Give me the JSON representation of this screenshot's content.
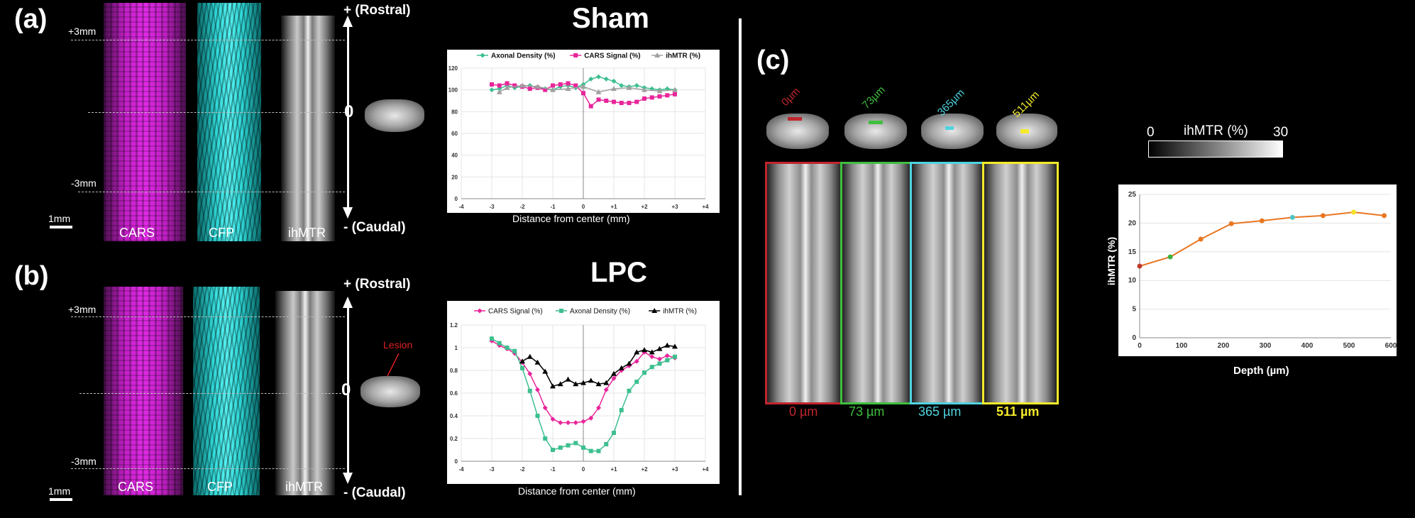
{
  "panels": {
    "a": {
      "label": "(a)",
      "title": "Sham"
    },
    "b": {
      "label": "(b)",
      "title": "LPC"
    },
    "c": {
      "label": "(c)"
    }
  },
  "strip_labels": {
    "cars": "CARS",
    "cfp": "CFP",
    "ihmtr": "ihMTR"
  },
  "markers": {
    "plus3": "+3mm",
    "minus3": "-3mm",
    "scale": "1mm",
    "zero": "0"
  },
  "arrows": {
    "rostral": "+ (Rostral)",
    "caudal": "- (Caudal)"
  },
  "lesion_label": "Lesion",
  "colors": {
    "cars": "#e02ae6",
    "cfp": "#2fd6d6",
    "axonal": "#3dbf8f",
    "ihmtr_black": "#000000",
    "ihmtr_gray": "#a0a0a0",
    "pink": "#e8259a"
  },
  "chart_data": [
    {
      "type": "line",
      "title": "Sham",
      "xlabel": "Distance from center (mm)",
      "ylabel": "",
      "xlim": [
        -4,
        4
      ],
      "ylim": [
        0,
        120
      ],
      "xticks": [
        "-4",
        "-3",
        "-2",
        "-1",
        "0",
        "+1",
        "+2",
        "+3",
        "+4"
      ],
      "yticks": [
        "0",
        "20",
        "40",
        "60",
        "80",
        "100",
        "120"
      ],
      "series": [
        {
          "name": "Axonal Density (%)",
          "color": "#3dbf8f",
          "marker": "diamond",
          "x": [
            -3,
            -2.75,
            -2.5,
            -2.25,
            -2,
            -1.75,
            -1.5,
            -1.25,
            -1,
            -0.75,
            -0.5,
            -0.25,
            0,
            0.25,
            0.5,
            0.75,
            1,
            1.25,
            1.5,
            1.75,
            2,
            2.25,
            2.5,
            2.75,
            3
          ],
          "values": [
            100,
            101,
            104,
            102,
            103,
            104,
            102,
            101,
            100,
            103,
            104,
            102,
            105,
            110,
            112,
            110,
            108,
            104,
            103,
            104,
            102,
            101,
            100,
            101,
            100
          ]
        },
        {
          "name": "CARS Signal (%)",
          "color": "#e8259a",
          "marker": "square",
          "x": [
            -3,
            -2.75,
            -2.5,
            -2.25,
            -2,
            -1.75,
            -1.5,
            -1.25,
            -1,
            -0.75,
            -0.5,
            -0.25,
            0,
            0.25,
            0.5,
            0.75,
            1,
            1.25,
            1.5,
            1.75,
            2,
            2.25,
            2.5,
            2.75,
            3
          ],
          "values": [
            105,
            104,
            106,
            104,
            103,
            101,
            102,
            100,
            104,
            105,
            106,
            104,
            97,
            85,
            91,
            90,
            89,
            88,
            88,
            89,
            92,
            93,
            94,
            95,
            96
          ]
        },
        {
          "name": "ihMTR (%)",
          "color": "#a0a0a0",
          "marker": "triangle",
          "x": [
            -2.75,
            -2.5,
            -2,
            -1.5,
            -1,
            -0.5,
            0,
            0.5,
            1,
            1.5,
            2,
            2.5,
            3
          ],
          "values": [
            98,
            102,
            104,
            103,
            100,
            101,
            103,
            98,
            101,
            102,
            100,
            99,
            100
          ]
        }
      ]
    },
    {
      "type": "line",
      "title": "LPC",
      "xlabel": "Distance from center (mm)",
      "ylabel": "",
      "xlim": [
        -4,
        4
      ],
      "ylim": [
        0,
        1.2
      ],
      "xticks": [
        "-4",
        "-3",
        "-2",
        "-1",
        "0",
        "+1",
        "+2",
        "+3",
        "+4"
      ],
      "yticks": [
        "0",
        "0.2",
        "0.4",
        "0.6",
        "0.8",
        "1",
        "1.2"
      ],
      "series": [
        {
          "name": "CARS Signal (%)",
          "color": "#e8259a",
          "marker": "diamond",
          "x": [
            -3,
            -2.75,
            -2.5,
            -2.25,
            -2,
            -1.75,
            -1.5,
            -1.25,
            -1,
            -0.75,
            -0.5,
            -0.25,
            0,
            0.25,
            0.5,
            0.75,
            1,
            1.25,
            1.5,
            1.75,
            2,
            2.25,
            2.5,
            2.75,
            3
          ],
          "values": [
            1.06,
            1.02,
            0.99,
            0.95,
            0.87,
            0.77,
            0.63,
            0.47,
            0.37,
            0.34,
            0.34,
            0.34,
            0.35,
            0.38,
            0.47,
            0.63,
            0.73,
            0.8,
            0.84,
            0.88,
            0.96,
            0.92,
            0.9,
            0.93,
            0.91
          ]
        },
        {
          "name": "Axonal Density (%)",
          "color": "#3dbf8f",
          "marker": "square",
          "x": [
            -3,
            -2.75,
            -2.5,
            -2.25,
            -2,
            -1.75,
            -1.5,
            -1.25,
            -1,
            -0.75,
            -0.5,
            -0.25,
            0,
            0.25,
            0.5,
            0.75,
            1,
            1.25,
            1.5,
            1.75,
            2,
            2.25,
            2.5,
            2.75,
            3
          ],
          "values": [
            1.08,
            1.04,
            1.0,
            0.97,
            0.82,
            0.62,
            0.4,
            0.2,
            0.1,
            0.12,
            0.14,
            0.16,
            0.12,
            0.09,
            0.09,
            0.15,
            0.25,
            0.45,
            0.62,
            0.7,
            0.78,
            0.83,
            0.86,
            0.89,
            0.92
          ]
        },
        {
          "name": "ihMTR (%)",
          "color": "#000000",
          "marker": "triangle",
          "x": [
            -2,
            -1.75,
            -1.5,
            -1.25,
            -1,
            -0.75,
            -0.5,
            -0.25,
            0,
            0.25,
            0.5,
            0.75,
            1,
            1.25,
            1.5,
            1.75,
            2,
            2.25,
            2.5,
            2.75,
            3
          ],
          "values": [
            0.88,
            0.92,
            0.87,
            0.79,
            0.66,
            0.68,
            0.72,
            0.68,
            0.69,
            0.71,
            0.68,
            0.69,
            0.77,
            0.82,
            0.86,
            0.96,
            0.98,
            0.96,
            0.99,
            1.02,
            1.01
          ]
        }
      ]
    },
    {
      "type": "line",
      "title": "",
      "xlabel": "Depth (µm)",
      "ylabel": "ihMTR (%)",
      "xlim": [
        0,
        600
      ],
      "ylim": [
        0,
        25
      ],
      "xticks": [
        "0",
        "100",
        "200",
        "300",
        "400",
        "500",
        "600"
      ],
      "yticks": [
        "0",
        "5",
        "10",
        "15",
        "20",
        "25"
      ],
      "series": [
        {
          "name": "ihMTR",
          "color": "#e87722",
          "x": [
            0,
            73,
            146,
            219,
            292,
            365,
            438,
            511,
            584
          ],
          "values": [
            12.5,
            14.1,
            17.2,
            19.9,
            20.4,
            21.0,
            21.3,
            21.9,
            21.3
          ],
          "point_colors": [
            "#c0392b",
            "#3fae3f",
            "#e87722",
            "#e87722",
            "#e87722",
            "#4fc3c3",
            "#e87722",
            "#f4e02a",
            "#e87722"
          ]
        }
      ]
    }
  ],
  "depths": [
    {
      "label": "0µm",
      "bottom": "0 µm",
      "color": "#c0262d"
    },
    {
      "label": "73µm",
      "bottom": "73 µm",
      "color": "#3fbf3f"
    },
    {
      "label": "365µm",
      "bottom": "365 µm",
      "color": "#4fd3e0"
    },
    {
      "label": "511µm",
      "bottom": "511 µm",
      "color": "#f4ea2a"
    }
  ],
  "colorbar": {
    "min": "0",
    "max": "30",
    "label": "ihMTR (%)"
  }
}
